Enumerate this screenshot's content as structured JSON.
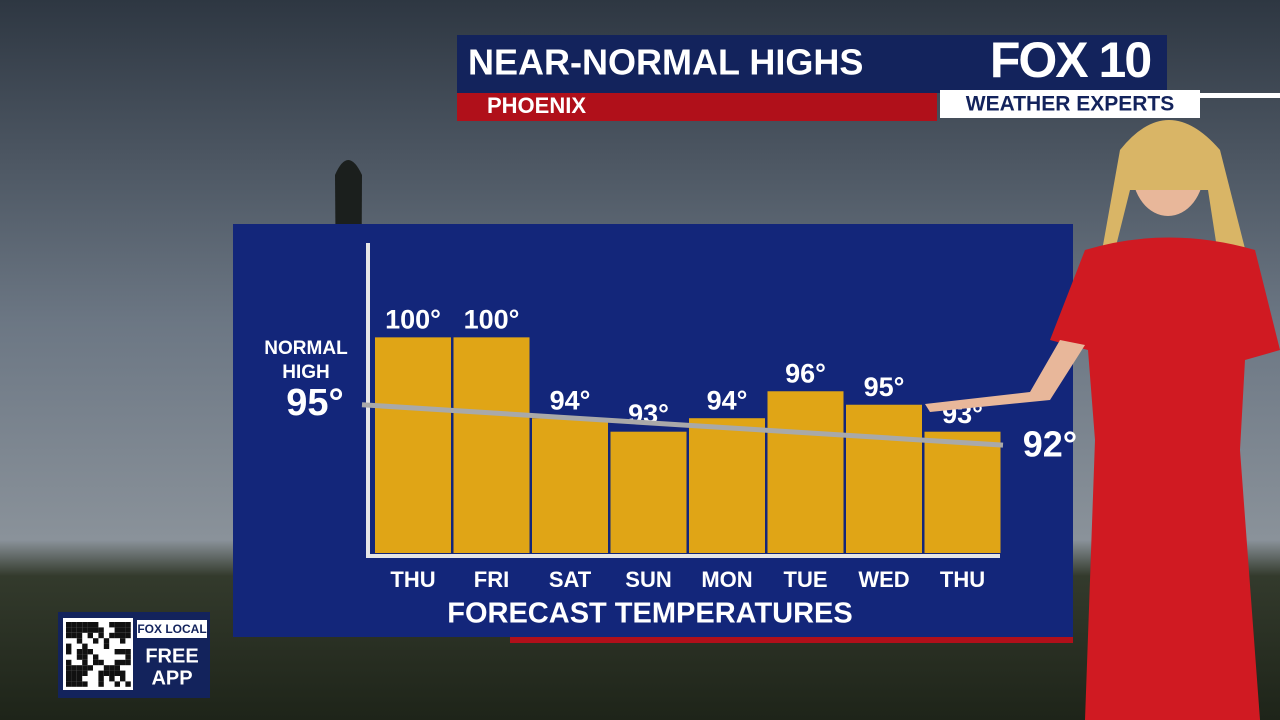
{
  "chart_data": {
    "type": "bar",
    "title": "NEAR-NORMAL HIGHS",
    "subtitle": "PHOENIX",
    "brand": "FOX 10",
    "brand_tagline": "WEATHER EXPERTS",
    "x_label": "FORECAST TEMPERATURES",
    "categories": [
      "THU",
      "FRI",
      "SAT",
      "SUN",
      "MON",
      "TUE",
      "WED",
      "THU"
    ],
    "values": [
      100,
      100,
      94,
      93,
      94,
      96,
      95,
      93
    ],
    "value_labels": [
      "100°",
      "100°",
      "94°",
      "93°",
      "94°",
      "96°",
      "95°",
      "93°"
    ],
    "color": "#e0a516",
    "ylim": [
      84,
      107
    ],
    "normal_high": {
      "label_lines": [
        "NORMAL",
        "HIGH"
      ],
      "start": 95,
      "start_label": "95°",
      "end": 92,
      "end_label": "92°",
      "color": "#a9a9a9"
    },
    "app_badge": {
      "brand": "FOX LOCAL",
      "text_lines": [
        "FREE",
        "APP"
      ]
    }
  }
}
